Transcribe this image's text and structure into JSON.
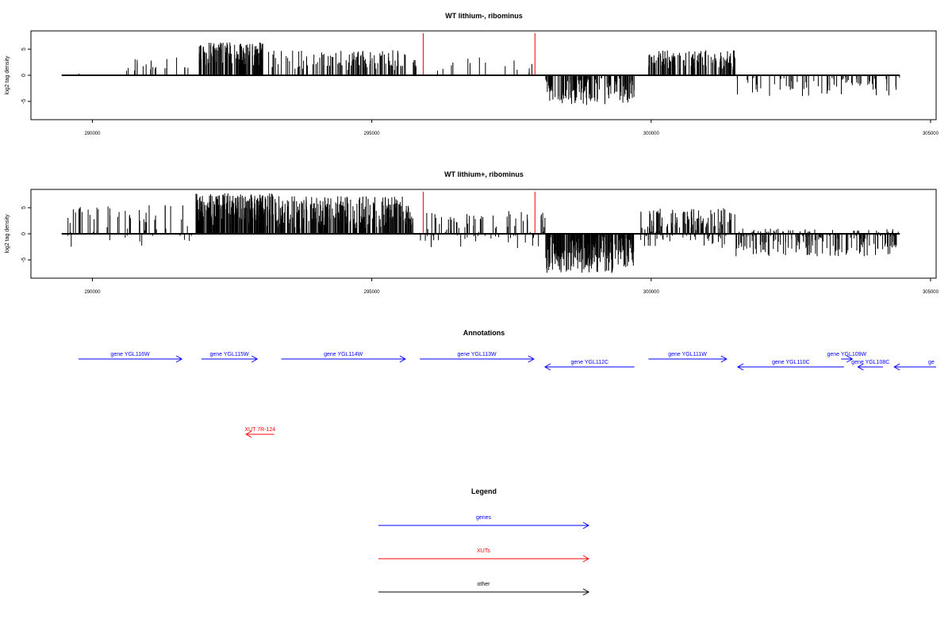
{
  "chart_data": [
    {
      "type": "bar",
      "title": "WT lithium-, ribominus",
      "ylabel": "log2 tag density",
      "xlim": [
        288900,
        305100
      ],
      "ylim": [
        -8.5,
        8.5
      ],
      "x_ticks": [
        "290000",
        "295000",
        "300000",
        "305000"
      ],
      "x_tick_values": [
        290000,
        295000,
        300000,
        305000
      ],
      "y_ticks": [
        "-5",
        "0",
        "5"
      ],
      "y_tick_values": [
        -5,
        0,
        5
      ],
      "baseline_range": [
        289450,
        304450
      ],
      "highlight_x": [
        295920,
        297920
      ],
      "highlight_color": "#ff0000",
      "regions": [
        {
          "start": 289750,
          "end": 289790,
          "min": 0.0,
          "max": 2.6,
          "density": 1
        },
        {
          "start": 290600,
          "end": 291900,
          "min": 0.8,
          "max": 3.6,
          "density": 20
        },
        {
          "start": 291900,
          "end": 293050,
          "min": 1.5,
          "max": 6.3,
          "density": 150
        },
        {
          "start": 293100,
          "end": 295600,
          "min": 1.0,
          "max": 4.8,
          "density": 110
        },
        {
          "start": 295700,
          "end": 296500,
          "min": 0.8,
          "max": 3.0,
          "density": 10
        },
        {
          "start": 296600,
          "end": 297900,
          "min": 0.5,
          "max": 3.5,
          "density": 10
        },
        {
          "start": 298100,
          "end": 299700,
          "min": -5.8,
          "max": -0.4,
          "density": 150
        },
        {
          "start": 299950,
          "end": 301500,
          "min": 1.0,
          "max": 4.8,
          "density": 130
        },
        {
          "start": 301500,
          "end": 304450,
          "min": -4.0,
          "max": -0.4,
          "density": 70
        }
      ]
    },
    {
      "type": "bar",
      "title": "WT lithium+, ribominus",
      "ylabel": "log2 tag density",
      "xlim": [
        288900,
        305100
      ],
      "ylim": [
        -8.5,
        8.5
      ],
      "x_ticks": [
        "290000",
        "295000",
        "300000",
        "305000"
      ],
      "x_tick_values": [
        290000,
        295000,
        300000,
        305000
      ],
      "y_ticks": [
        "-5",
        "0",
        "5"
      ],
      "y_tick_values": [
        -5,
        0,
        5
      ],
      "baseline_range": [
        289450,
        304450
      ],
      "highlight_x": [
        295920,
        297920
      ],
      "highlight_color": "#ff0000",
      "regions": [
        {
          "start": 289550,
          "end": 291800,
          "min": -2.5,
          "max": 5.5,
          "density": 60
        },
        {
          "start": 291850,
          "end": 293250,
          "min": 1.5,
          "max": 7.8,
          "density": 250
        },
        {
          "start": 293250,
          "end": 295700,
          "min": 1.0,
          "max": 7.2,
          "density": 260
        },
        {
          "start": 295700,
          "end": 297400,
          "min": -3.0,
          "max": 4.0,
          "density": 60
        },
        {
          "start": 297400,
          "end": 298100,
          "min": -3.0,
          "max": 4.5,
          "density": 30
        },
        {
          "start": 298100,
          "end": 299700,
          "min": -7.8,
          "max": -0.5,
          "density": 250
        },
        {
          "start": 299800,
          "end": 301500,
          "min": -3.0,
          "max": 5.0,
          "density": 140
        },
        {
          "start": 301500,
          "end": 304450,
          "min": -4.5,
          "max": 1.0,
          "density": 190
        }
      ]
    }
  ],
  "annotations": {
    "title": "Annotations",
    "xlim": [
      288900,
      305100
    ],
    "features": [
      {
        "label": "gene YGL116W",
        "start": 289750,
        "end": 291600,
        "strand": "+",
        "type": "gene",
        "row": 0
      },
      {
        "label": "gene YGL115W",
        "start": 291950,
        "end": 292950,
        "strand": "+",
        "type": "gene",
        "row": 0
      },
      {
        "label": "gene YGL114W",
        "start": 293380,
        "end": 295600,
        "strand": "+",
        "type": "gene",
        "row": 0
      },
      {
        "label": "gene YGL113W",
        "start": 295860,
        "end": 297900,
        "strand": "+",
        "type": "gene",
        "row": 0
      },
      {
        "label": "gene YGL112C",
        "start": 298100,
        "end": 299700,
        "strand": "-",
        "type": "gene",
        "row": 1
      },
      {
        "label": "gene YGL111W",
        "start": 299950,
        "end": 301350,
        "strand": "+",
        "type": "gene",
        "row": 0
      },
      {
        "label": "gene YGL110C",
        "start": 301550,
        "end": 303450,
        "strand": "-",
        "type": "gene",
        "row": 1
      },
      {
        "label": "gene YGL109W",
        "start": 303400,
        "end": 303600,
        "strand": "+",
        "type": "gene",
        "row": 0
      },
      {
        "label": "gene YGL108C",
        "start": 303700,
        "end": 304150,
        "strand": "-",
        "type": "gene",
        "row": 1
      },
      {
        "label": "ge",
        "start": 304350,
        "end": 305100,
        "strand": "-",
        "type": "gene",
        "row": 1
      },
      {
        "label": "XUT 7R-124",
        "start": 292750,
        "end": 293250,
        "strand": "-",
        "type": "XUT",
        "row": 2
      }
    ]
  },
  "legend": {
    "title": "Legend",
    "items": [
      {
        "label": "genes",
        "color": "#0000ff"
      },
      {
        "label": "XUTs",
        "color": "#ff0000"
      },
      {
        "label": "other",
        "color": "#000000"
      }
    ]
  },
  "colors": {
    "gene": "#0000ff",
    "XUT": "#ff0000",
    "other": "#000000",
    "bars": "#000000",
    "highlight": "#ff0000"
  }
}
